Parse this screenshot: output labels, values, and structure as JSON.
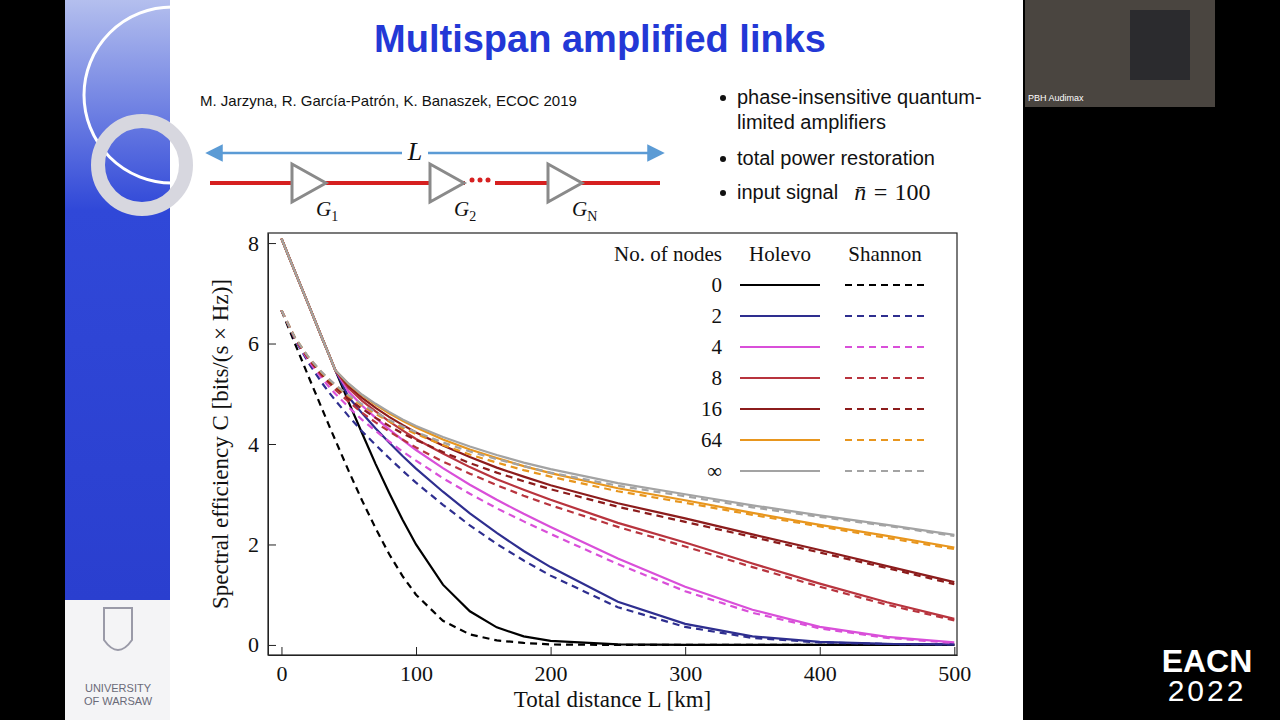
{
  "slide": {
    "title": "Multispan amplified links",
    "citation": "M. Jarzyna, R. García-Patrón, K. Banaszek, ECOC 2019",
    "bullets": [
      [
        "phase-insensitive quantum-",
        "limited amplifiers"
      ],
      [
        "total power restoration"
      ],
      [
        "input signal"
      ]
    ],
    "input_signal": {
      "symbol": "n̄ =",
      "value": 100
    },
    "diagram": {
      "length_label": "L",
      "amplifiers": [
        [
          "G",
          "1"
        ],
        [
          "G",
          "2"
        ],
        [
          "G",
          "N"
        ]
      ]
    },
    "logo": [
      "UNIVERSITY",
      "OF WARSAW"
    ],
    "event": [
      "EACN",
      "2022"
    ],
    "camera_label": "PBH Audimax"
  },
  "chart_data": {
    "type": "line",
    "x_label": "Total distance L [km]",
    "y_label": "Spectral efficiency C [bits/(s × Hz)]",
    "legend": "upper right",
    "legend_title": "No. of nodes",
    "legend_columns": [
      "Holevo",
      "Shannon"
    ],
    "grid": false,
    "xlim": [
      -10,
      502
    ],
    "ylim": [
      -0.2,
      8.2
    ],
    "xticks": [
      0,
      100,
      200,
      300,
      400,
      500
    ],
    "yticks": [
      0,
      2,
      4,
      6,
      8
    ],
    "x": [
      0,
      10,
      20,
      30,
      35,
      40,
      50,
      60,
      70,
      80,
      90,
      100,
      120,
      140,
      160,
      180,
      200,
      250,
      300,
      350,
      400,
      450,
      500
    ],
    "series": [
      {
        "name": "0",
        "color": "#000000",
        "line_style": "solid",
        "values": [
          8.09,
          7.43,
          6.78,
          6.12,
          5.8,
          5.47,
          4.83,
          4.21,
          3.6,
          3.03,
          2.49,
          2.0,
          1.2,
          0.67,
          0.35,
          0.17,
          0.08,
          0.01,
          0,
          0,
          0,
          0,
          0
        ]
      },
      {
        "name": "0",
        "color": "#000000",
        "line_style": "dashed",
        "values": [
          6.66,
          6.0,
          5.35,
          4.71,
          4.39,
          4.08,
          3.46,
          2.87,
          2.32,
          1.81,
          1.37,
          1.0,
          0.48,
          0.21,
          0.09,
          0.04,
          0.01,
          0,
          0,
          0,
          0,
          0,
          0
        ]
      },
      {
        "name": "2",
        "color": "#2e2e8f",
        "line_style": "solid",
        "values": [
          8.09,
          7.43,
          6.78,
          6.12,
          5.8,
          5.47,
          4.93,
          4.61,
          4.31,
          4.03,
          3.76,
          3.51,
          3.05,
          2.62,
          2.23,
          1.87,
          1.55,
          0.86,
          0.42,
          0.17,
          0.06,
          0.02,
          0.01
        ]
      },
      {
        "name": "2",
        "color": "#2e2e8f",
        "line_style": "dashed",
        "values": [
          6.66,
          6.08,
          5.62,
          5.22,
          5.04,
          4.87,
          4.55,
          4.25,
          3.98,
          3.72,
          3.47,
          3.23,
          2.79,
          2.38,
          2.01,
          1.68,
          1.38,
          0.75,
          0.36,
          0.14,
          0.05,
          0.02,
          0.01
        ]
      },
      {
        "name": "4",
        "color": "#d94fd9",
        "line_style": "solid",
        "values": [
          8.09,
          7.43,
          6.78,
          6.12,
          5.8,
          5.47,
          5.04,
          4.76,
          4.52,
          4.29,
          4.08,
          3.88,
          3.52,
          3.19,
          2.89,
          2.61,
          2.35,
          1.72,
          1.16,
          0.7,
          0.36,
          0.16,
          0.05
        ]
      },
      {
        "name": "4",
        "color": "#d94fd9",
        "line_style": "dashed",
        "values": [
          6.66,
          6.1,
          5.66,
          5.31,
          5.15,
          5.0,
          4.73,
          4.48,
          4.26,
          4.05,
          3.85,
          3.67,
          3.32,
          3.01,
          2.72,
          2.46,
          2.21,
          1.61,
          1.07,
          0.64,
          0.33,
          0.14,
          0.04
        ]
      },
      {
        "name": "8",
        "color": "#b8343e",
        "line_style": "solid",
        "values": [
          8.09,
          7.43,
          6.78,
          6.12,
          5.8,
          5.47,
          5.11,
          4.86,
          4.65,
          4.45,
          4.27,
          4.1,
          3.81,
          3.54,
          3.3,
          3.09,
          2.89,
          2.43,
          2.04,
          1.62,
          1.22,
          0.85,
          0.52
        ]
      },
      {
        "name": "8",
        "color": "#b8343e",
        "line_style": "dashed",
        "values": [
          6.66,
          6.11,
          5.69,
          5.36,
          5.22,
          5.08,
          4.84,
          4.62,
          4.43,
          4.25,
          4.09,
          3.93,
          3.65,
          3.41,
          3.18,
          2.97,
          2.78,
          2.35,
          1.96,
          1.55,
          1.16,
          0.8,
          0.49
        ]
      },
      {
        "name": "16",
        "color": "#8c1c1c",
        "line_style": "solid",
        "values": [
          8.09,
          7.43,
          6.78,
          6.12,
          5.8,
          5.47,
          5.15,
          4.92,
          4.72,
          4.54,
          4.38,
          4.23,
          3.97,
          3.74,
          3.53,
          3.35,
          3.18,
          2.82,
          2.52,
          2.2,
          1.89,
          1.57,
          1.25
        ]
      },
      {
        "name": "16",
        "color": "#8c1c1c",
        "line_style": "dashed",
        "values": [
          6.66,
          6.11,
          5.71,
          5.39,
          5.25,
          5.13,
          4.9,
          4.7,
          4.52,
          4.36,
          4.21,
          4.08,
          3.84,
          3.62,
          3.43,
          3.26,
          3.1,
          2.75,
          2.45,
          2.15,
          1.84,
          1.53,
          1.21
        ]
      },
      {
        "name": "64",
        "color": "#e8961e",
        "line_style": "solid",
        "values": [
          8.09,
          7.43,
          6.78,
          6.12,
          5.8,
          5.47,
          5.19,
          4.97,
          4.78,
          4.61,
          4.46,
          4.33,
          4.09,
          3.89,
          3.72,
          3.56,
          3.42,
          3.12,
          2.88,
          2.63,
          2.39,
          2.17,
          1.94
        ]
      },
      {
        "name": "64",
        "color": "#e8961e",
        "line_style": "dashed",
        "values": [
          6.66,
          6.12,
          5.73,
          5.42,
          5.29,
          5.17,
          4.95,
          4.76,
          4.6,
          4.45,
          4.32,
          4.2,
          3.98,
          3.79,
          3.63,
          3.48,
          3.35,
          3.06,
          2.83,
          2.59,
          2.36,
          2.13,
          1.91
        ]
      },
      {
        "name": "∞",
        "color": "#a3a3a3",
        "line_style": "solid",
        "values": [
          8.09,
          7.43,
          6.78,
          6.12,
          5.8,
          5.47,
          5.2,
          4.98,
          4.8,
          4.64,
          4.49,
          4.36,
          4.14,
          3.95,
          3.78,
          3.63,
          3.5,
          3.22,
          3.0,
          2.78,
          2.58,
          2.39,
          2.19
        ]
      },
      {
        "name": "∞",
        "color": "#a3a3a3",
        "line_style": "dashed",
        "values": [
          6.66,
          6.12,
          5.73,
          5.43,
          5.3,
          5.18,
          4.97,
          4.79,
          4.63,
          4.48,
          4.35,
          4.24,
          4.03,
          3.85,
          3.7,
          3.56,
          3.43,
          3.17,
          2.96,
          2.74,
          2.55,
          2.37,
          2.17
        ]
      }
    ]
  }
}
